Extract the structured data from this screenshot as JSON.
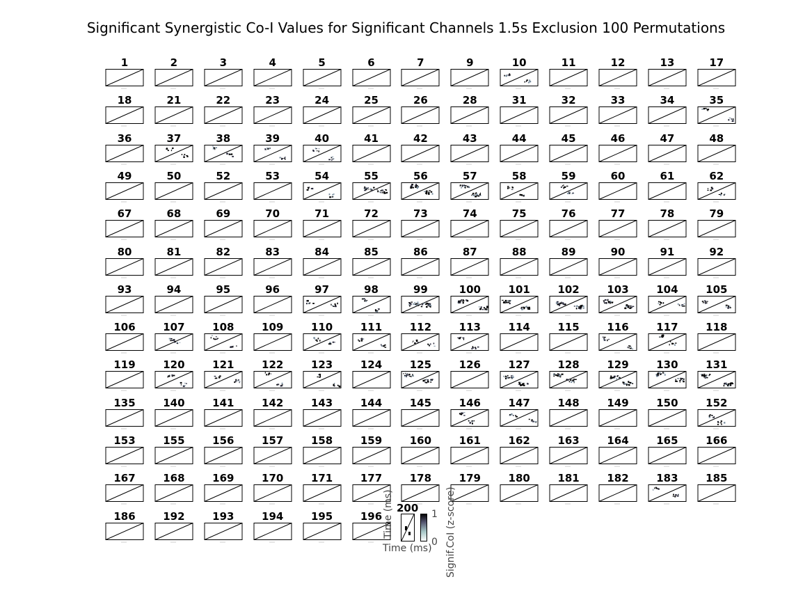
{
  "chart_data": {
    "type": "heatmap",
    "title": "Significant Synergistic Co-I Values for Significant Channels 1.5s Exclusion 100 Permutations",
    "panel_titles": [
      "1",
      "2",
      "3",
      "4",
      "5",
      "6",
      "7",
      "9",
      "10",
      "11",
      "12",
      "13",
      "17",
      "18",
      "21",
      "22",
      "23",
      "24",
      "25",
      "26",
      "28",
      "31",
      "32",
      "33",
      "34",
      "35",
      "36",
      "37",
      "38",
      "39",
      "40",
      "41",
      "42",
      "43",
      "44",
      "45",
      "46",
      "47",
      "48",
      "49",
      "50",
      "52",
      "53",
      "54",
      "55",
      "56",
      "57",
      "58",
      "59",
      "60",
      "61",
      "62",
      "67",
      "68",
      "69",
      "70",
      "71",
      "72",
      "73",
      "74",
      "75",
      "76",
      "77",
      "78",
      "79",
      "80",
      "81",
      "82",
      "83",
      "84",
      "85",
      "86",
      "87",
      "88",
      "89",
      "90",
      "91",
      "92",
      "93",
      "94",
      "95",
      "96",
      "97",
      "98",
      "99",
      "100",
      "101",
      "102",
      "103",
      "104",
      "105",
      "106",
      "107",
      "108",
      "109",
      "110",
      "111",
      "112",
      "113",
      "114",
      "115",
      "116",
      "117",
      "118",
      "119",
      "120",
      "121",
      "122",
      "123",
      "124",
      "125",
      "126",
      "127",
      "128",
      "129",
      "130",
      "131",
      "135",
      "140",
      "141",
      "142",
      "143",
      "144",
      "145",
      "146",
      "147",
      "148",
      "149",
      "150",
      "152",
      "153",
      "155",
      "156",
      "157",
      "158",
      "159",
      "160",
      "161",
      "162",
      "163",
      "164",
      "165",
      "166",
      "167",
      "168",
      "169",
      "170",
      "171",
      "177",
      "178",
      "179",
      "180",
      "181",
      "182",
      "183",
      "185",
      "186",
      "192",
      "193",
      "194",
      "195",
      "196"
    ],
    "active_panels": [
      "10",
      "35",
      "37",
      "38",
      "39",
      "40",
      "54",
      "55",
      "56",
      "57",
      "58",
      "59",
      "62",
      "97",
      "98",
      "99",
      "100",
      "101",
      "102",
      "103",
      "104",
      "105",
      "107",
      "108",
      "110",
      "111",
      "112",
      "113",
      "116",
      "117",
      "120",
      "121",
      "122",
      "123",
      "125",
      "127",
      "128",
      "129",
      "130",
      "131",
      "146",
      "147",
      "152",
      "183"
    ],
    "strong_panels": [
      "55",
      "56",
      "57",
      "99",
      "100",
      "101",
      "102",
      "103",
      "125",
      "127",
      "128",
      "129",
      "130",
      "131"
    ],
    "legend_panel": {
      "title": "200",
      "xlabel": "Time (ms)",
      "ylabel": "Time (ms)"
    },
    "colorbar": {
      "label": "Signif.CoI (z-score)",
      "min_label": "0",
      "max_label": "1",
      "range": [
        0,
        1
      ],
      "colormap": "bone"
    },
    "grid": {
      "columns": 13,
      "rows": 13
    }
  }
}
